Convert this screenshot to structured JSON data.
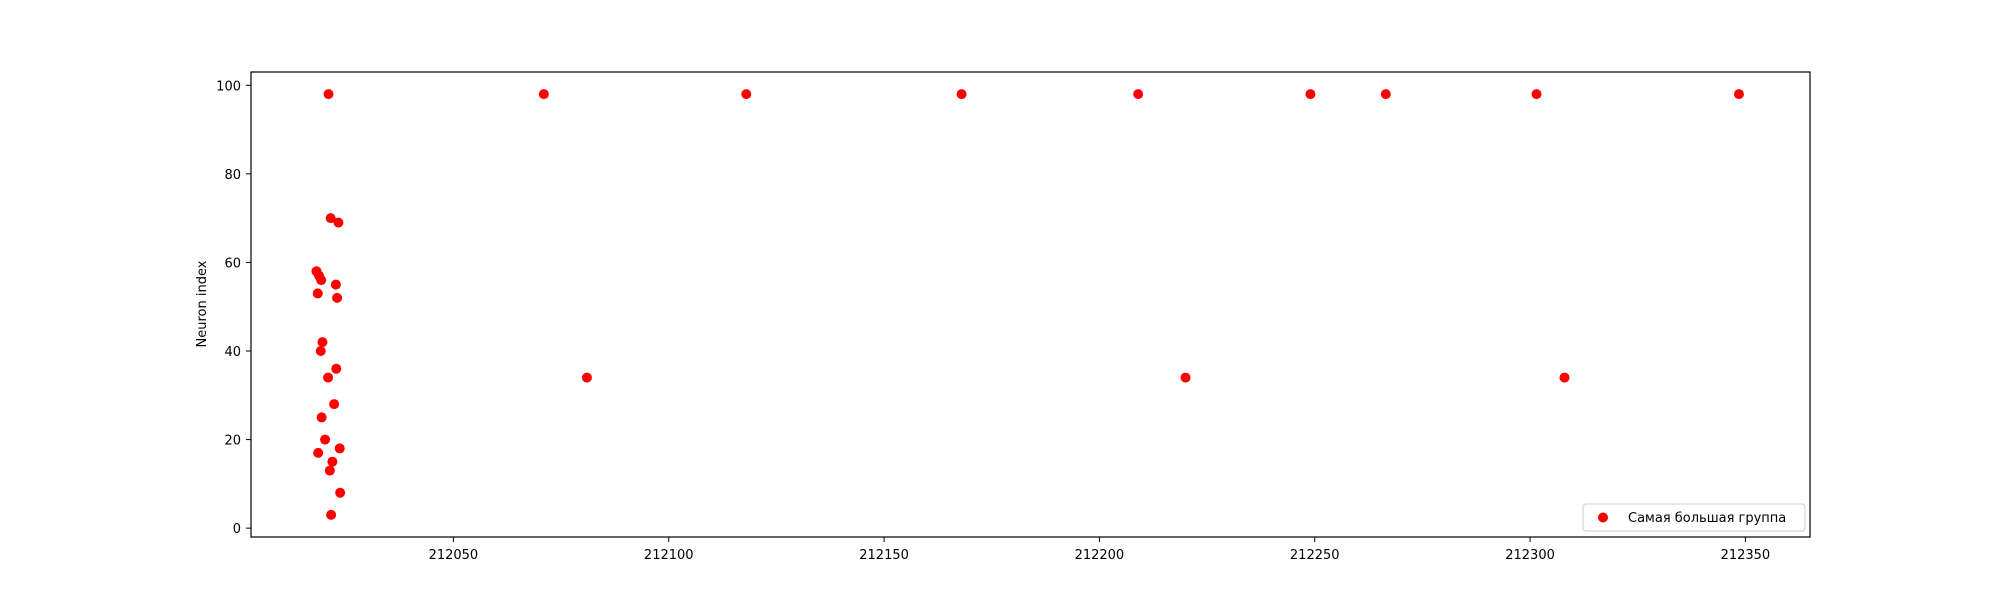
{
  "chart_data": {
    "type": "scatter",
    "title": "",
    "xlabel": "",
    "ylabel": "Neuron index",
    "xlim": [
      212003,
      212365
    ],
    "ylim": [
      -2,
      103
    ],
    "xticks": [
      212050,
      212100,
      212150,
      212200,
      212250,
      212300,
      212350
    ],
    "yticks": [
      0,
      20,
      40,
      60,
      80,
      100
    ],
    "grid": false,
    "legend_position": "lower-right",
    "series": [
      {
        "name": "Самая большая группа",
        "color": "#ff0000",
        "points": [
          {
            "x": 212021,
            "y": 98
          },
          {
            "x": 212071,
            "y": 98
          },
          {
            "x": 212118,
            "y": 98
          },
          {
            "x": 212168,
            "y": 98
          },
          {
            "x": 212209,
            "y": 98
          },
          {
            "x": 212249,
            "y": 98
          },
          {
            "x": 212266.5,
            "y": 98
          },
          {
            "x": 212301.5,
            "y": 98
          },
          {
            "x": 212348.5,
            "y": 98
          },
          {
            "x": 212021.5,
            "y": 70
          },
          {
            "x": 212023.3,
            "y": 69
          },
          {
            "x": 212018.2,
            "y": 58
          },
          {
            "x": 212018.8,
            "y": 57
          },
          {
            "x": 212019.3,
            "y": 56
          },
          {
            "x": 212022.7,
            "y": 55
          },
          {
            "x": 212018.5,
            "y": 53
          },
          {
            "x": 212023,
            "y": 52
          },
          {
            "x": 212019.6,
            "y": 42
          },
          {
            "x": 212019.2,
            "y": 40
          },
          {
            "x": 212022.8,
            "y": 36
          },
          {
            "x": 212020.9,
            "y": 34
          },
          {
            "x": 212081,
            "y": 34
          },
          {
            "x": 212220,
            "y": 34
          },
          {
            "x": 212308,
            "y": 34
          },
          {
            "x": 212022.3,
            "y": 28
          },
          {
            "x": 212019.4,
            "y": 25
          },
          {
            "x": 212020.2,
            "y": 20
          },
          {
            "x": 212023.6,
            "y": 18
          },
          {
            "x": 212018.6,
            "y": 17
          },
          {
            "x": 212021.9,
            "y": 15
          },
          {
            "x": 212021.3,
            "y": 13
          },
          {
            "x": 212023.7,
            "y": 8
          },
          {
            "x": 212021.6,
            "y": 3
          }
        ]
      }
    ]
  }
}
